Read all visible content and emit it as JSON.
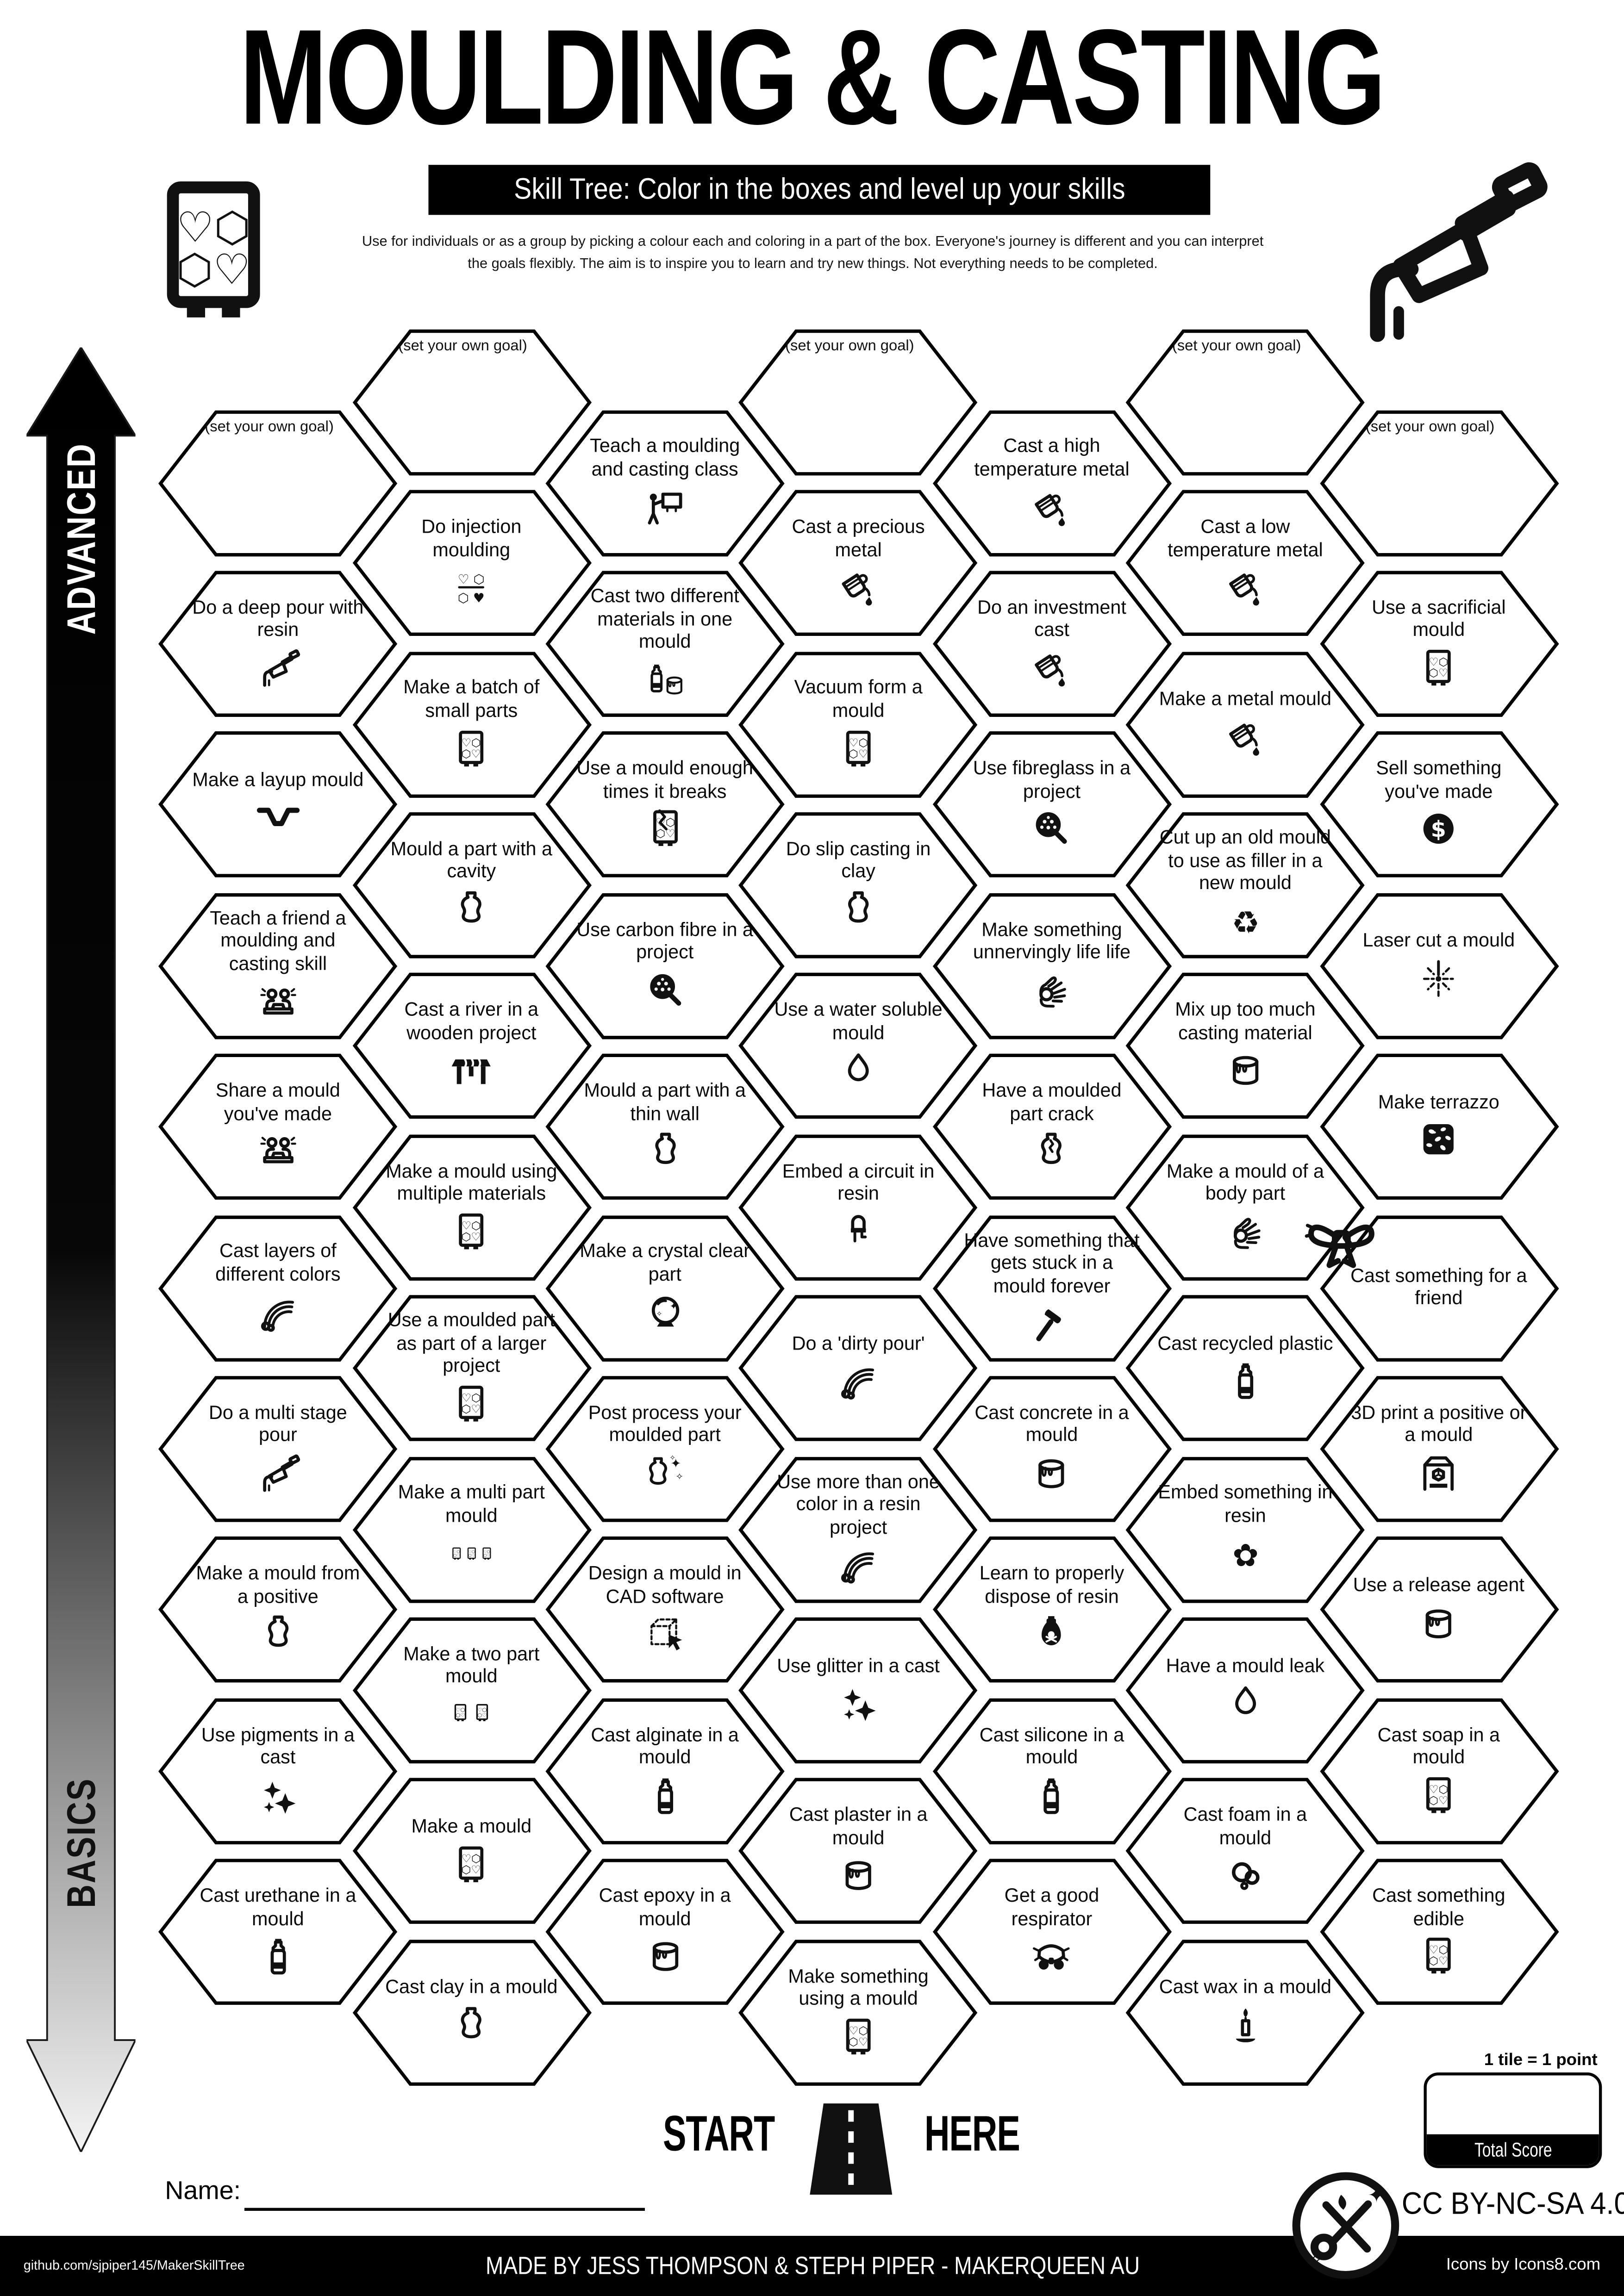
{
  "title": "MOULDING & CASTING",
  "subtitle": "Skill Tree:  Color in the boxes and level up your skills",
  "description": "Use for individuals or as a group by picking a colour each and coloring in a part of the box.  Everyone's journey is different and you can interpret the goals flexibly.  The aim is to inspire you to learn and try new things. Not everything needs to be completed.",
  "axis": {
    "advanced": "ADVANCED",
    "basics": "BASICS"
  },
  "goal_text": "(set your own goal)",
  "start": {
    "left": "START",
    "right": "HERE"
  },
  "name_label": "Name:",
  "score": {
    "note": "1 tile = 1 point",
    "label": "Total Score"
  },
  "license": "CC BY-NC-SA 4.0",
  "footer": {
    "left": "github.com/sjpiper145/MakerSkillTree",
    "center": "MADE BY JESS THOMPSON & STEPH PIPER  -  MAKERQUEEN AU",
    "right": "Icons by Icons8.com"
  },
  "colors": {
    "ink": "#000000",
    "paper": "#ffffff"
  },
  "columns": [
    {
      "tiles": [
        {
          "goal": true
        },
        {
          "label": "Do a deep pour with resin",
          "icon": "caulking-gun"
        },
        {
          "label": "Make a layup mould",
          "icon": "layup-channel"
        },
        {
          "label": "Teach a friend a moulding and casting skill",
          "icon": "people-desk"
        },
        {
          "label": "Share a mould you've made",
          "icon": "people-desk"
        },
        {
          "label": "Cast layers of different colors",
          "icon": "rainbow"
        },
        {
          "label": "Do a multi stage pour",
          "icon": "caulking-gun"
        },
        {
          "label": "Make a mould from a positive",
          "icon": "vase"
        },
        {
          "label": "Use pigments in a cast",
          "icon": "sparkles"
        },
        {
          "label": "Cast urethane in a mould",
          "icon": "bottle"
        }
      ]
    },
    {
      "tiles": [
        {
          "goal": true
        },
        {
          "label": "Do injection moulding",
          "icon": "injection-shapes"
        },
        {
          "label": "Make a batch of small parts",
          "icon": "mould-tray"
        },
        {
          "label": "Mould a part with a cavity",
          "icon": "vase"
        },
        {
          "label": "Cast a river in a wooden project",
          "icon": "table-river"
        },
        {
          "label": "Make a mould using multiple materials",
          "icon": "mould-tray"
        },
        {
          "label": "Use a moulded part as part of a larger project",
          "icon": "mould-tray"
        },
        {
          "label": "Make a  multi part mould",
          "icon": "mould-tray-x3"
        },
        {
          "label": "Make a two part mould",
          "icon": "mould-tray-x2"
        },
        {
          "label": "Make a mould",
          "icon": "mould-tray"
        },
        {
          "label": "Cast clay in a mould",
          "icon": "vase"
        }
      ]
    },
    {
      "tiles": [
        {
          "label": "Teach a moulding and casting class",
          "icon": "person-whiteboard"
        },
        {
          "label": "Cast two different materials in one mould",
          "icon": "bottle-and-can"
        },
        {
          "label": "Use a mould enough times it breaks",
          "icon": "mould-tray-broken"
        },
        {
          "label": "Use carbon fibre in a project",
          "icon": "magnifier-weave"
        },
        {
          "label": "Mould a part with a thin wall",
          "icon": "vase"
        },
        {
          "label": "Make a crystal clear part",
          "icon": "crystal-ball"
        },
        {
          "label": "Post process your moulded part",
          "icon": "vase-sparkle"
        },
        {
          "label": "Design a mould in CAD software",
          "icon": "cad-cube"
        },
        {
          "label": "Cast alginate in a mould",
          "icon": "bottle"
        },
        {
          "label": "Cast epoxy in a mould",
          "icon": "paint-can"
        }
      ]
    },
    {
      "tiles": [
        {
          "goal": true
        },
        {
          "label": "Cast a precious metal",
          "icon": "crucible-pour"
        },
        {
          "label": "Vacuum form a mould",
          "icon": "mould-tray"
        },
        {
          "label": "Do slip casting in clay",
          "icon": "vase"
        },
        {
          "label": "Use a water soluble mould",
          "icon": "water-drop"
        },
        {
          "label": "Embed a circuit in resin",
          "icon": "led"
        },
        {
          "label": "Do a 'dirty pour'",
          "icon": "rainbow"
        },
        {
          "label": "Use more than one color in a resin project",
          "icon": "rainbow"
        },
        {
          "label": "Use glitter in a cast",
          "icon": "sparkles"
        },
        {
          "label": "Cast plaster in a mould",
          "icon": "paint-can"
        },
        {
          "label": "Make something using a mould",
          "icon": "mould-tray"
        }
      ]
    },
    {
      "tiles": [
        {
          "label": "Cast a high temperature metal",
          "icon": "crucible-pour"
        },
        {
          "label": "Do an investment cast",
          "icon": "crucible-pour"
        },
        {
          "label": "Use fibreglass in a project",
          "icon": "magnifier-weave"
        },
        {
          "label": "Make something unnervingly life life",
          "icon": "ok-hand"
        },
        {
          "label": "Have a moulded part crack",
          "icon": "vase-cracked"
        },
        {
          "label": "Have something that gets stuck in a mould forever",
          "icon": "hammer"
        },
        {
          "label": "Cast concrete in a mould",
          "icon": "paint-can"
        },
        {
          "label": "Learn to properly dispose of resin",
          "icon": "poison-bottle"
        },
        {
          "label": "Cast silicone in a mould",
          "icon": "bottle"
        },
        {
          "label": "Get a good respirator",
          "icon": "respirator"
        }
      ]
    },
    {
      "tiles": [
        {
          "goal": true
        },
        {
          "label": "Cast a low temperature metal",
          "icon": "crucible-pour"
        },
        {
          "label": "Make a metal mould",
          "icon": "crucible-pour"
        },
        {
          "label": "Cut up an old mould to use as filler in a new mould",
          "icon": "recycle"
        },
        {
          "label": "Mix up too much casting material",
          "icon": "paint-can"
        },
        {
          "label": "Make a mould of a body part",
          "icon": "ok-hand"
        },
        {
          "label": "Cast recycled plastic",
          "icon": "bottle"
        },
        {
          "label": "Embed something in resin",
          "icon": "flower"
        },
        {
          "label": "Have a mould leak",
          "icon": "water-drop"
        },
        {
          "label": "Cast foam in a mould",
          "icon": "foam-bubbles"
        },
        {
          "label": "Cast wax in a mould",
          "icon": "candle"
        }
      ]
    },
    {
      "tiles": [
        {
          "goal": true
        },
        {
          "label": "Use a sacrificial mould",
          "icon": "mould-tray"
        },
        {
          "label": "Sell something you've made",
          "icon": "dollar-coin"
        },
        {
          "label": "Laser cut a mould",
          "icon": "laser-burst"
        },
        {
          "label": "Make terrazzo",
          "icon": "terrazzo"
        },
        {
          "label": "Cast something for a friend",
          "icon": "",
          "decor": "gift-bow"
        },
        {
          "label": "3D print a positive or a mould",
          "icon": "printer-3d"
        },
        {
          "label": "Use a release agent",
          "icon": "paint-can"
        },
        {
          "label": "Cast soap in a mould",
          "icon": "mould-tray"
        },
        {
          "label": "Cast something edible",
          "icon": "mould-tray"
        }
      ]
    }
  ]
}
